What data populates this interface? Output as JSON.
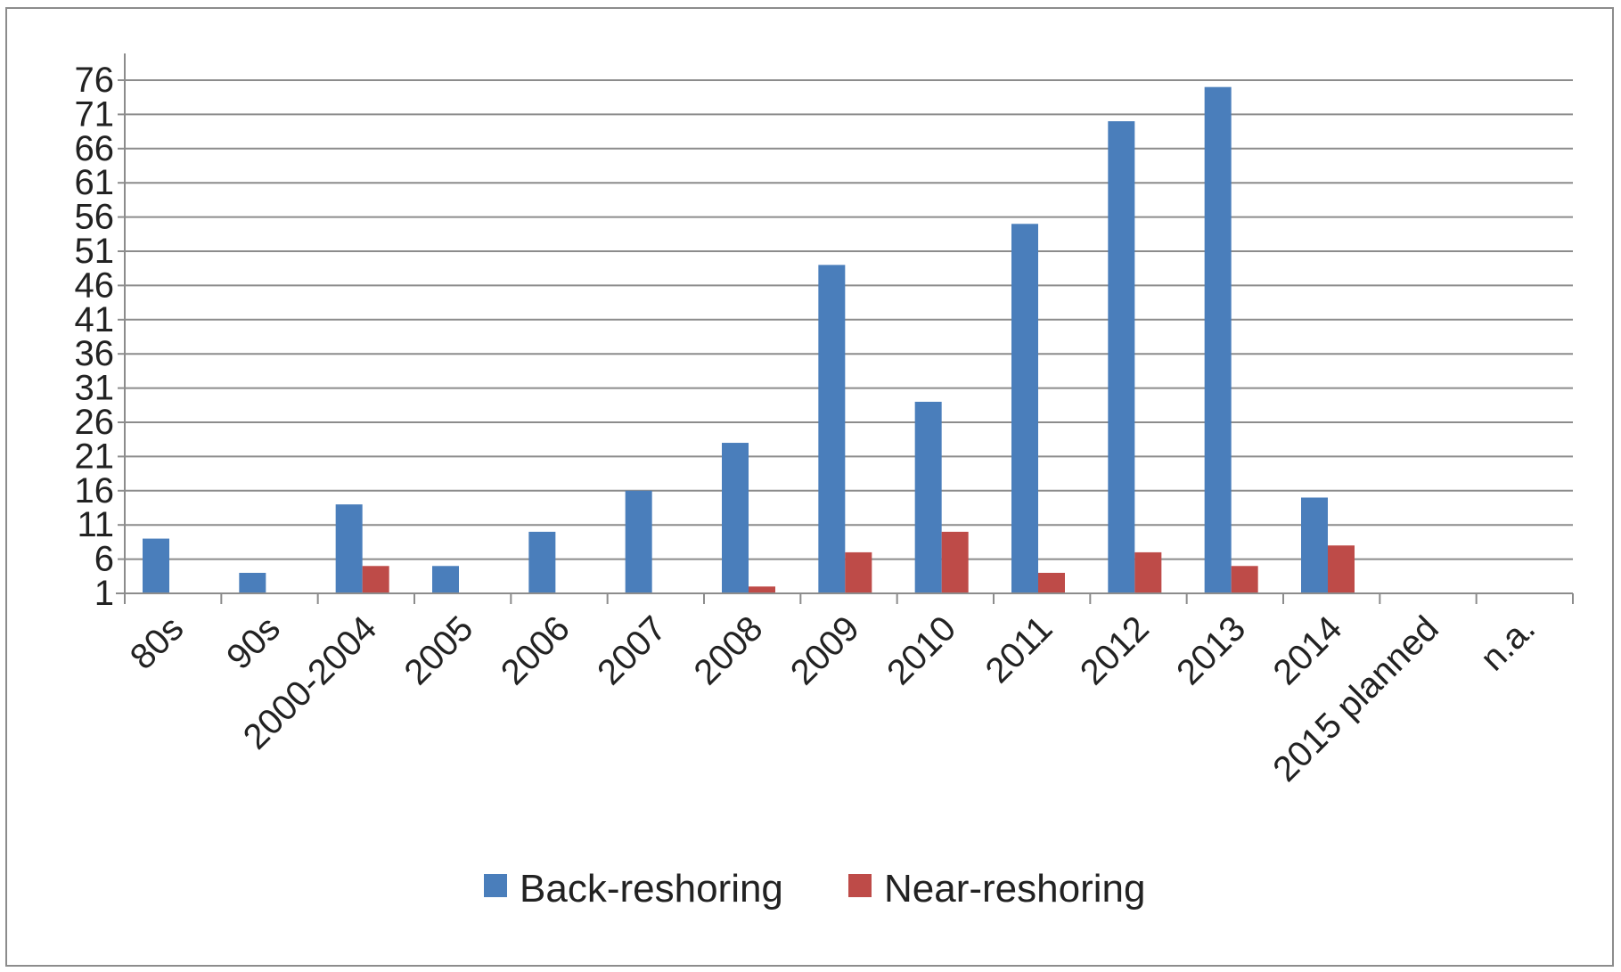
{
  "chart_data": {
    "type": "bar",
    "title": "",
    "xlabel": "",
    "ylabel": "",
    "categories": [
      "80s",
      "90s",
      "2000-2004",
      "2005",
      "2006",
      "2007",
      "2008",
      "2009",
      "2010",
      "2011",
      "2012",
      "2013",
      "2014",
      "2015 planned",
      "n.a."
    ],
    "series": [
      {
        "name": "Back-reshoring",
        "color": "#4a7ebb",
        "values": [
          9,
          4,
          14,
          5,
          10,
          16,
          23,
          49,
          29,
          55,
          70,
          75,
          15,
          0,
          0
        ]
      },
      {
        "name": "Near-reshoring",
        "color": "#be4b48",
        "values": [
          0,
          0,
          5,
          0,
          0,
          0,
          2,
          7,
          10,
          4,
          7,
          5,
          8,
          0,
          0
        ]
      }
    ],
    "yticks": [
      1,
      6,
      11,
      16,
      21,
      26,
      31,
      36,
      41,
      46,
      51,
      56,
      61,
      66,
      71,
      76
    ],
    "ylim": [
      1,
      76
    ],
    "grid": true,
    "legend_position": "bottom",
    "gridline_color": "#8c8c8c",
    "axis_color": "#8c8c8c"
  }
}
